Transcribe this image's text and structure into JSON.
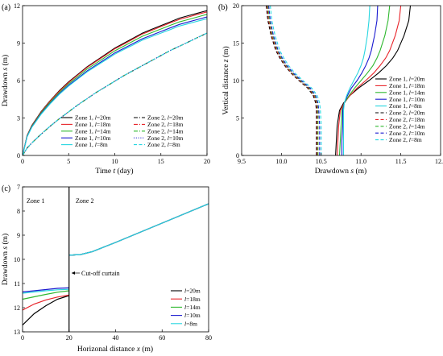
{
  "chart_data": [
    {
      "panel_label": "(a)",
      "type": "line",
      "xlabel_pre": "Time ",
      "xlabel_var": "t",
      "xlabel_post": " (day)",
      "ylabel_pre": "Drawdown ",
      "ylabel_var": "s",
      "ylabel_post": " (m)",
      "xlim": [
        0,
        20
      ],
      "ylim": [
        0,
        12
      ],
      "xticks": [
        0,
        5,
        10,
        15,
        20
      ],
      "yticks": [
        0,
        3,
        6,
        9,
        12
      ],
      "x": [
        0,
        0.5,
        1,
        2,
        3,
        4,
        5,
        6,
        7,
        8,
        9,
        10,
        11,
        12,
        13,
        14,
        15,
        16,
        17,
        18,
        19,
        20
      ],
      "series": [
        {
          "name": "Zone 1, l=20m",
          "zone": "Zone 1",
          "l": "20m",
          "color": "#000000",
          "dash": "solid",
          "values": [
            0,
            1.6,
            2.4,
            3.5,
            4.4,
            5.2,
            5.9,
            6.5,
            7.1,
            7.6,
            8.1,
            8.6,
            9.0,
            9.4,
            9.8,
            10.1,
            10.4,
            10.7,
            11.0,
            11.2,
            11.4,
            11.6
          ]
        },
        {
          "name": "Zone 1, l=18m",
          "zone": "Zone 1",
          "l": "18m",
          "color": "#e8242a",
          "dash": "solid",
          "values": [
            0,
            1.58,
            2.37,
            3.46,
            4.36,
            5.15,
            5.85,
            6.45,
            7.05,
            7.55,
            8.04,
            8.54,
            8.93,
            9.33,
            9.73,
            10.02,
            10.32,
            10.61,
            10.9,
            11.1,
            11.3,
            11.5
          ]
        },
        {
          "name": "Zone 1, l=14m",
          "zone": "Zone 1",
          "l": "14m",
          "color": "#2eb82e",
          "dash": "solid",
          "values": [
            0,
            1.55,
            2.33,
            3.4,
            4.28,
            5.06,
            5.75,
            6.33,
            6.92,
            7.4,
            7.89,
            8.38,
            8.77,
            9.16,
            9.55,
            9.84,
            10.13,
            10.42,
            10.7,
            10.9,
            11.1,
            11.3
          ]
        },
        {
          "name": "Zone 1, l=10m",
          "zone": "Zone 1",
          "l": "10m",
          "color": "#1a1ad0",
          "dash": "solid",
          "values": [
            0,
            1.52,
            2.28,
            3.33,
            4.19,
            4.96,
            5.63,
            6.2,
            6.77,
            7.25,
            7.73,
            8.21,
            8.59,
            8.97,
            9.35,
            9.64,
            9.93,
            10.21,
            10.5,
            10.7,
            10.9,
            11.1
          ]
        },
        {
          "name": "Zone 1, l=8m",
          "zone": "Zone 1",
          "l": "8m",
          "color": "#27d6e0",
          "dash": "solid",
          "values": [
            0,
            1.5,
            2.25,
            3.29,
            4.14,
            4.9,
            5.56,
            6.13,
            6.69,
            7.17,
            7.64,
            8.11,
            8.49,
            8.86,
            9.24,
            9.52,
            9.8,
            10.08,
            10.37,
            10.56,
            10.76,
            10.95
          ]
        },
        {
          "name": "Zone 2, l=20m",
          "zone": "Zone 2",
          "l": "20m",
          "color": "#000000",
          "dash": "dashdot",
          "values": [
            0,
            0.6,
            1.0,
            1.7,
            2.35,
            2.95,
            3.5,
            4.05,
            4.55,
            5.05,
            5.5,
            5.95,
            6.4,
            6.8,
            7.2,
            7.6,
            8.0,
            8.4,
            8.75,
            9.1,
            9.45,
            9.8
          ]
        },
        {
          "name": "Zone 2, l=18m",
          "zone": "Zone 2",
          "l": "18m",
          "color": "#e8242a",
          "dash": "dashdot",
          "values": [
            0,
            0.6,
            1.0,
            1.7,
            2.35,
            2.95,
            3.5,
            4.05,
            4.55,
            5.05,
            5.5,
            5.95,
            6.4,
            6.8,
            7.2,
            7.6,
            8.0,
            8.4,
            8.75,
            9.1,
            9.45,
            9.8
          ]
        },
        {
          "name": "Zone 2, l=14m",
          "zone": "Zone 2",
          "l": "14m",
          "color": "#2eb82e",
          "dash": "dashdot",
          "values": [
            0,
            0.6,
            1.0,
            1.7,
            2.35,
            2.95,
            3.5,
            4.05,
            4.55,
            5.05,
            5.5,
            5.95,
            6.4,
            6.8,
            7.2,
            7.6,
            8.0,
            8.4,
            8.75,
            9.1,
            9.45,
            9.8
          ]
        },
        {
          "name": "Zone 2, l=10m",
          "zone": "Zone 2",
          "l": "10m",
          "color": "#1a1ad0",
          "dash": "dotted",
          "values": [
            0,
            0.6,
            1.0,
            1.7,
            2.35,
            2.95,
            3.5,
            4.05,
            4.55,
            5.05,
            5.5,
            5.95,
            6.4,
            6.8,
            7.2,
            7.6,
            8.0,
            8.4,
            8.75,
            9.1,
            9.45,
            9.8
          ]
        },
        {
          "name": "Zone 2, l=8m",
          "zone": "Zone 2",
          "l": "8m",
          "color": "#27d6e0",
          "dash": "dashed",
          "values": [
            0,
            0.6,
            1.0,
            1.7,
            2.35,
            2.95,
            3.5,
            4.05,
            4.55,
            5.05,
            5.5,
            5.95,
            6.4,
            6.8,
            7.2,
            7.6,
            8.0,
            8.4,
            8.75,
            9.1,
            9.45,
            9.8
          ]
        }
      ]
    },
    {
      "panel_label": "(b)",
      "type": "line",
      "xlabel_pre": "Drawdown ",
      "xlabel_var": "s",
      "xlabel_post": " (m)",
      "ylabel_pre": "Vertical distance ",
      "ylabel_var": "z",
      "ylabel_post": " (m)",
      "xlim": [
        9.5,
        12.0
      ],
      "ylim": [
        0,
        20
      ],
      "xticks": [
        "9.5",
        "10.0",
        "10.5",
        "11.0",
        "11.5",
        "12.0"
      ],
      "yticks": [
        0,
        5,
        10,
        15,
        20
      ],
      "z": [
        0,
        2,
        4,
        6,
        7,
        8,
        9,
        10,
        11,
        12,
        13,
        14,
        16,
        18,
        20
      ],
      "series": [
        {
          "name": "Zone 1, l=20m",
          "zone": "Zone 1",
          "l": "20m",
          "color": "#000000",
          "dash": "solid",
          "values": [
            10.68,
            10.69,
            10.7,
            10.73,
            10.78,
            10.86,
            10.97,
            11.1,
            11.22,
            11.32,
            11.4,
            11.46,
            11.54,
            11.6,
            11.62
          ]
        },
        {
          "name": "Zone 1, l=18m",
          "zone": "Zone 1",
          "l": "18m",
          "color": "#e8242a",
          "dash": "solid",
          "values": [
            10.7,
            10.71,
            10.72,
            10.74,
            10.79,
            10.86,
            10.95,
            11.06,
            11.16,
            11.24,
            11.31,
            11.36,
            11.43,
            11.48,
            11.5
          ]
        },
        {
          "name": "Zone 1, l=14m",
          "zone": "Zone 1",
          "l": "14m",
          "color": "#2eb82e",
          "dash": "solid",
          "values": [
            10.73,
            10.74,
            10.75,
            10.76,
            10.79,
            10.85,
            10.92,
            11.0,
            11.08,
            11.15,
            11.2,
            11.24,
            11.3,
            11.34,
            11.36
          ]
        },
        {
          "name": "Zone 1, l=10m",
          "zone": "Zone 1",
          "l": "10m",
          "color": "#1a1ad0",
          "dash": "solid",
          "values": [
            10.76,
            10.76,
            10.77,
            10.77,
            10.79,
            10.83,
            10.88,
            10.95,
            11.01,
            11.06,
            11.1,
            11.13,
            11.17,
            11.2,
            11.21
          ]
        },
        {
          "name": "Zone 1, l=8m",
          "zone": "Zone 1",
          "l": "8m",
          "color": "#27d6e0",
          "dash": "solid",
          "values": [
            10.78,
            10.78,
            10.78,
            10.78,
            10.79,
            10.82,
            10.86,
            10.91,
            10.96,
            11.0,
            11.03,
            11.05,
            11.08,
            11.1,
            11.11
          ]
        },
        {
          "name": "Zone 2, l=20m",
          "zone": "Zone 2",
          "l": "20m",
          "color": "#000000",
          "dash": "dashed",
          "values": [
            10.44,
            10.44,
            10.44,
            10.44,
            10.43,
            10.4,
            10.33,
            10.22,
            10.12,
            10.04,
            9.98,
            9.93,
            9.87,
            9.83,
            9.81
          ]
        },
        {
          "name": "Zone 2, l=18m",
          "zone": "Zone 2",
          "l": "18m",
          "color": "#e8242a",
          "dash": "dashed",
          "values": [
            10.45,
            10.45,
            10.45,
            10.45,
            10.44,
            10.41,
            10.34,
            10.23,
            10.13,
            10.05,
            9.99,
            9.94,
            9.88,
            9.84,
            9.82
          ]
        },
        {
          "name": "Zone 2, l=14m",
          "zone": "Zone 2",
          "l": "14m",
          "color": "#2eb82e",
          "dash": "dashed",
          "values": [
            10.46,
            10.46,
            10.46,
            10.46,
            10.45,
            10.42,
            10.35,
            10.24,
            10.14,
            10.06,
            10.0,
            9.95,
            9.89,
            9.85,
            9.83
          ]
        },
        {
          "name": "Zone 2, l=10m",
          "zone": "Zone 2",
          "l": "10m",
          "color": "#1a1ad0",
          "dash": "dashed",
          "values": [
            10.48,
            10.48,
            10.48,
            10.47,
            10.46,
            10.43,
            10.36,
            10.25,
            10.15,
            10.07,
            10.01,
            9.96,
            9.9,
            9.86,
            9.84
          ]
        },
        {
          "name": "Zone 2, l=8m",
          "zone": "Zone 2",
          "l": "8m",
          "color": "#27d6e0",
          "dash": "dashed",
          "values": [
            10.5,
            10.5,
            10.5,
            10.49,
            10.48,
            10.45,
            10.38,
            10.27,
            10.17,
            10.09,
            10.03,
            9.98,
            9.92,
            9.88,
            9.86
          ]
        }
      ]
    },
    {
      "panel_label": "(c)",
      "type": "line",
      "xlabel_pre": "Horizonal distance ",
      "xlabel_var": "x",
      "xlabel_post": " (m)",
      "ylabel_pre": "Drawdown ",
      "ylabel_var": "s",
      "ylabel_post": " (m)",
      "xlim": [
        0,
        80
      ],
      "ylim": [
        13,
        7
      ],
      "y_inverted": true,
      "xticks": [
        0,
        20,
        40,
        60,
        80
      ],
      "yticks": [
        7,
        8,
        9,
        10,
        11,
        12,
        13
      ],
      "zone1_label": "Zone 1",
      "zone2_label": "Zone 2",
      "curtain_x": 20,
      "curtain_annotation": "Cut-off curtain",
      "zone1_x": [
        0,
        5,
        10,
        15,
        20
      ],
      "zone2_x": [
        20,
        25,
        30,
        40,
        50,
        60,
        70,
        80
      ],
      "zone2_values": [
        9.83,
        9.8,
        9.68,
        9.3,
        8.9,
        8.5,
        8.1,
        7.7
      ],
      "series": [
        {
          "name": "l=20m",
          "l": "20m",
          "color": "#000000",
          "values": [
            12.72,
            12.25,
            11.92,
            11.65,
            11.5
          ]
        },
        {
          "name": "l=18m",
          "l": "18m",
          "color": "#e8242a",
          "values": [
            12.1,
            11.85,
            11.68,
            11.56,
            11.48
          ]
        },
        {
          "name": "l=14m",
          "l": "14m",
          "color": "#2eb82e",
          "values": [
            11.65,
            11.55,
            11.45,
            11.36,
            11.3
          ]
        },
        {
          "name": "l=10m",
          "l": "10m",
          "color": "#1a1ad0",
          "values": [
            11.35,
            11.3,
            11.25,
            11.2,
            11.18
          ]
        },
        {
          "name": "l=8m",
          "l": "8m",
          "color": "#27d6e0",
          "values": [
            11.4,
            11.35,
            11.3,
            11.26,
            11.24
          ]
        }
      ]
    }
  ]
}
